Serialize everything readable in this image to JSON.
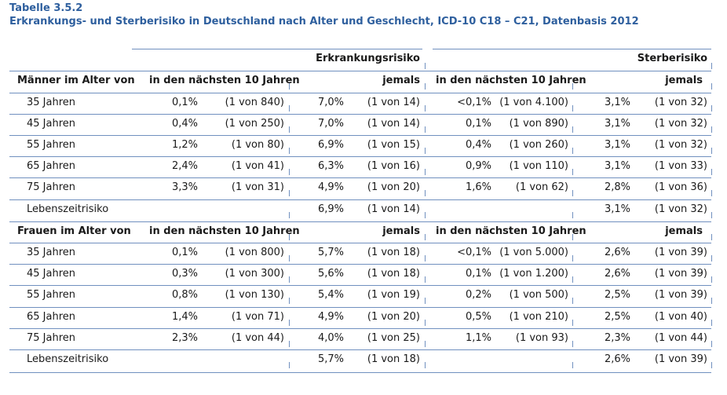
{
  "caption": {
    "number": "Tabelle 3.5.2",
    "title": "Erkrankungs- und Sterberisiko in Deutschland nach Alter und Geschlecht, ICD-10 C18 – C21, Datenbasis 2012"
  },
  "headers": {
    "erkrankung": "Erkrankungsrisiko",
    "sterbe": "Sterberisiko",
    "next10": "in den nächsten 10 Jahren",
    "ever": "jemals"
  },
  "groups": [
    {
      "label": "Männer im Alter von",
      "rows": [
        {
          "age": "35 Jahren",
          "e10p": "0,1%",
          "e10n": "(1 von 840)",
          "ejp": "7,0%",
          "ejn": "(1 von 14)",
          "s10p": "<0,1%",
          "s10n": "(1 von 4.100)",
          "sjp": "3,1%",
          "sjn": "(1 von 32)"
        },
        {
          "age": "45 Jahren",
          "e10p": "0,4%",
          "e10n": "(1 von 250)",
          "ejp": "7,0%",
          "ejn": "(1 von 14)",
          "s10p": "0,1%",
          "s10n": "(1 von 890)",
          "sjp": "3,1%",
          "sjn": "(1 von 32)"
        },
        {
          "age": "55 Jahren",
          "e10p": "1,2%",
          "e10n": "(1 von 80)",
          "ejp": "6,9%",
          "ejn": "(1 von 15)",
          "s10p": "0,4%",
          "s10n": "(1 von 260)",
          "sjp": "3,1%",
          "sjn": "(1 von 32)"
        },
        {
          "age": "65 Jahren",
          "e10p": "2,4%",
          "e10n": "(1 von 41)",
          "ejp": "6,3%",
          "ejn": "(1 von 16)",
          "s10p": "0,9%",
          "s10n": "(1 von 110)",
          "sjp": "3,1%",
          "sjn": "(1 von 33)"
        },
        {
          "age": "75 Jahren",
          "e10p": "3,3%",
          "e10n": "(1 von 31)",
          "ejp": "4,9%",
          "ejn": "(1 von 20)",
          "s10p": "1,6%",
          "s10n": "(1 von 62)",
          "sjp": "2,8%",
          "sjn": "(1 von 36)"
        },
        {
          "age": "Lebenszeitrisiko",
          "e10p": "",
          "e10n": "",
          "ejp": "6,9%",
          "ejn": "(1 von 14)",
          "s10p": "",
          "s10n": "",
          "sjp": "3,1%",
          "sjn": "(1 von 32)"
        }
      ]
    },
    {
      "label": "Frauen im Alter von",
      "rows": [
        {
          "age": "35 Jahren",
          "e10p": "0,1%",
          "e10n": "(1 von 800)",
          "ejp": "5,7%",
          "ejn": "(1 von 18)",
          "s10p": "<0,1%",
          "s10n": "(1 von 5.000)",
          "sjp": "2,6%",
          "sjn": "(1 von 39)"
        },
        {
          "age": "45 Jahren",
          "e10p": "0,3%",
          "e10n": "(1 von 300)",
          "ejp": "5,6%",
          "ejn": "(1 von 18)",
          "s10p": "0,1%",
          "s10n": "(1 von 1.200)",
          "sjp": "2,6%",
          "sjn": "(1 von 39)"
        },
        {
          "age": "55 Jahren",
          "e10p": "0,8%",
          "e10n": "(1 von 130)",
          "ejp": "5,4%",
          "ejn": "(1 von 19)",
          "s10p": "0,2%",
          "s10n": "(1 von 500)",
          "sjp": "2,5%",
          "sjn": "(1 von 39)"
        },
        {
          "age": "65 Jahren",
          "e10p": "1,4%",
          "e10n": "(1 von 71)",
          "ejp": "4,9%",
          "ejn": "(1 von 20)",
          "s10p": "0,5%",
          "s10n": "(1 von 210)",
          "sjp": "2,5%",
          "sjn": "(1 von 40)"
        },
        {
          "age": "75 Jahren",
          "e10p": "2,3%",
          "e10n": "(1 von 44)",
          "ejp": "4,0%",
          "ejn": "(1 von 25)",
          "s10p": "1,1%",
          "s10n": "(1 von 93)",
          "sjp": "2,3%",
          "sjn": "(1 von 44)"
        },
        {
          "age": "Lebenszeitrisiko",
          "e10p": "",
          "e10n": "",
          "ejp": "5,7%",
          "ejn": "(1 von 18)",
          "s10p": "",
          "s10n": "",
          "sjp": "2,6%",
          "sjn": "(1 von 39)"
        }
      ]
    }
  ]
}
